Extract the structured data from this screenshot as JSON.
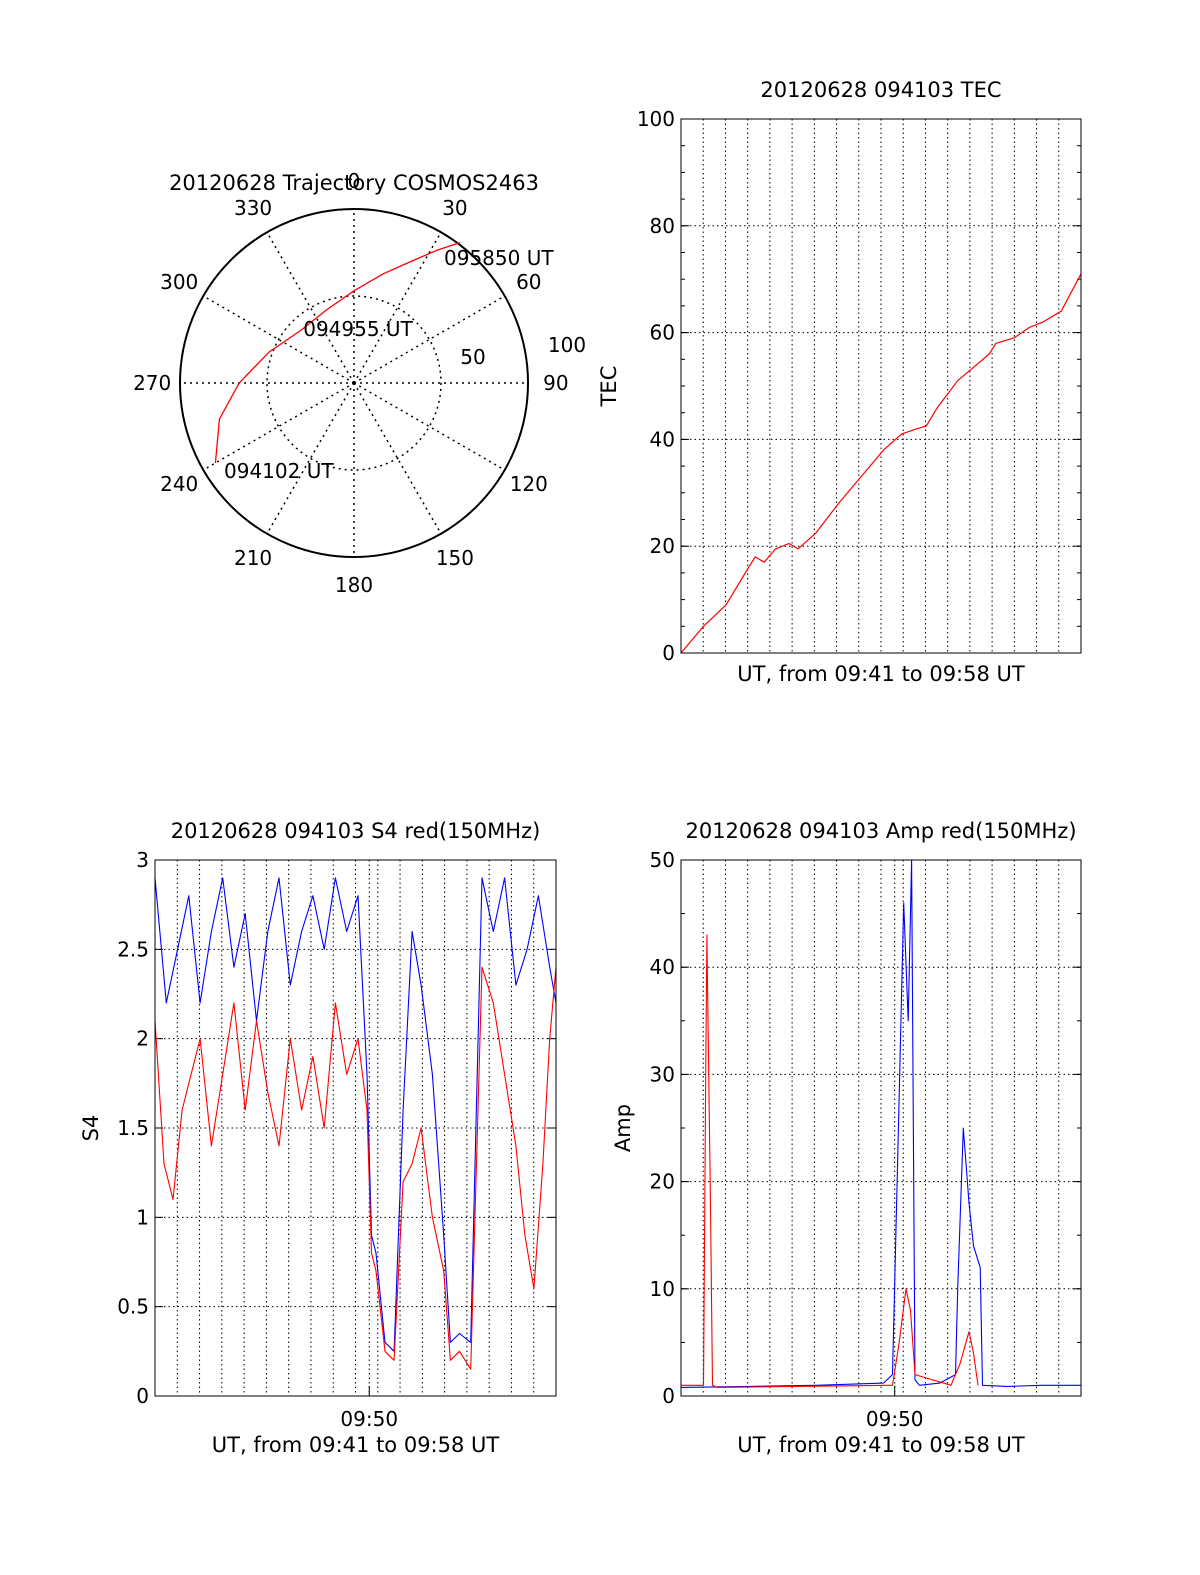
{
  "chart_data": [
    {
      "id": "trajectory",
      "type": "scatter",
      "subtype": "polar",
      "title": "20120628 Trajectory COSMOS2463",
      "azimuth_labels": [
        "0",
        "30",
        "60",
        "90",
        "120",
        "150",
        "180",
        "210",
        "240",
        "270",
        "300",
        "330"
      ],
      "radius_labels": [
        "50",
        "100"
      ],
      "ring_radii": [
        50,
        100
      ],
      "line_color": "#ff0000",
      "track": [
        {
          "az": 240,
          "r": 92
        },
        {
          "az": 255,
          "r": 80
        },
        {
          "az": 270,
          "r": 66
        },
        {
          "az": 290,
          "r": 52
        },
        {
          "az": 315,
          "r": 43
        },
        {
          "az": 340,
          "r": 45
        },
        {
          "az": 0,
          "r": 53
        },
        {
          "az": 15,
          "r": 65
        },
        {
          "az": 25,
          "r": 77
        },
        {
          "az": 32,
          "r": 90
        },
        {
          "az": 37,
          "r": 101
        }
      ],
      "annotations": [
        {
          "text": "095850 UT",
          "az": 36,
          "r": 103
        },
        {
          "text": "094955 UT",
          "az": 0,
          "r": 31
        },
        {
          "text": "094102 UT",
          "az": 236,
          "r": 86
        }
      ]
    },
    {
      "id": "tec",
      "type": "line",
      "title": "20120628 094103 TEC",
      "xlabel": "UT, from 09:41 to 09:58 UT",
      "ylabel": "TEC",
      "xlim": [
        0,
        17.78
      ],
      "ylim": [
        0,
        100
      ],
      "yticks": [
        "0",
        "20",
        "40",
        "60",
        "80",
        "100"
      ],
      "series": [
        {
          "color": "#ff0000",
          "x": [
            0,
            1.0,
            2.0,
            3.0,
            3.3,
            3.7,
            4.2,
            4.8,
            5.2,
            6.0,
            7.0,
            8.0,
            9.0,
            9.8,
            10.5,
            10.9,
            11.4,
            12.3,
            13.0,
            13.7,
            14.0,
            14.8,
            15.5,
            16.1,
            16.9,
            17.78
          ],
          "y": [
            0,
            5,
            9,
            16,
            18,
            17,
            19.5,
            20.5,
            19.5,
            22.5,
            28,
            33,
            38,
            41,
            42,
            42.5,
            46,
            51,
            53.5,
            56,
            58,
            59,
            61,
            62,
            64,
            71
          ]
        }
      ]
    },
    {
      "id": "s4",
      "type": "line",
      "title": "20120628 094103 S4 red(150MHz)",
      "xlabel": "UT, from 09:41 to 09:58 UT",
      "ylabel": "S4",
      "xlim": [
        0,
        17.78
      ],
      "ylim": [
        0,
        3
      ],
      "yticks": [
        "0",
        "0.5",
        "1",
        "1.5",
        "2",
        "2.5",
        "3"
      ],
      "xticks": [
        {
          "x": 9.5,
          "label": "09:50"
        }
      ],
      "series": [
        {
          "color": "#0000ff",
          "x": [
            0,
            0.5,
            1.0,
            1.5,
            2.0,
            2.5,
            3.0,
            3.5,
            4.0,
            4.5,
            5.0,
            5.5,
            6.0,
            6.5,
            7.0,
            7.5,
            8.0,
            8.5,
            9.0,
            9.4,
            9.6,
            9.8,
            10.2,
            10.6,
            11.0,
            11.4,
            11.8,
            12.3,
            12.8,
            13.1,
            13.5,
            14.0,
            14.5,
            15.0,
            15.5,
            16.0,
            16.5,
            17.0,
            17.5,
            17.78
          ],
          "y": [
            2.9,
            2.2,
            2.5,
            2.8,
            2.2,
            2.6,
            2.9,
            2.4,
            2.7,
            2.1,
            2.6,
            2.9,
            2.3,
            2.6,
            2.8,
            2.5,
            2.9,
            2.6,
            2.8,
            1.8,
            0.9,
            0.8,
            0.3,
            0.25,
            1.6,
            2.6,
            2.3,
            1.8,
            0.9,
            0.3,
            0.35,
            0.3,
            2.9,
            2.6,
            2.9,
            2.3,
            2.5,
            2.8,
            2.4,
            2.2
          ]
        },
        {
          "color": "#ff0000",
          "x": [
            0,
            0.4,
            0.8,
            1.2,
            1.6,
            2.0,
            2.5,
            3.0,
            3.5,
            4.0,
            4.5,
            5.0,
            5.5,
            6.0,
            6.5,
            7.0,
            7.5,
            8.0,
            8.5,
            9.0,
            9.4,
            9.6,
            9.8,
            10.2,
            10.6,
            11.0,
            11.4,
            11.8,
            12.3,
            12.8,
            13.1,
            13.5,
            14.0,
            14.5,
            15.0,
            15.5,
            16.0,
            16.4,
            16.8,
            17.2,
            17.5,
            17.78
          ],
          "y": [
            2.1,
            1.3,
            1.1,
            1.6,
            1.8,
            2.0,
            1.4,
            1.8,
            2.2,
            1.6,
            2.1,
            1.7,
            1.4,
            2.0,
            1.6,
            1.9,
            1.5,
            2.2,
            1.8,
            2.0,
            1.6,
            0.8,
            0.7,
            0.25,
            0.2,
            1.2,
            1.3,
            1.5,
            1.0,
            0.7,
            0.2,
            0.25,
            0.15,
            2.4,
            2.2,
            1.8,
            1.4,
            0.9,
            0.6,
            1.3,
            2.0,
            2.4
          ]
        }
      ]
    },
    {
      "id": "amp",
      "type": "line",
      "title": "20120628 094103 Amp red(150MHz)",
      "xlabel": "UT, from 09:41 to 09:58 UT",
      "ylabel": "Amp",
      "xlim": [
        0,
        17.78
      ],
      "ylim": [
        0,
        50
      ],
      "yticks": [
        "0",
        "10",
        "20",
        "30",
        "40",
        "50"
      ],
      "xticks": [
        {
          "x": 9.5,
          "label": "09:50"
        }
      ],
      "series": [
        {
          "color": "#0000ff",
          "x": [
            0,
            3.0,
            6.0,
            9.0,
            9.4,
            9.7,
            9.9,
            10.1,
            10.25,
            10.4,
            10.6,
            11.5,
            12.2,
            12.3,
            12.55,
            12.8,
            13.0,
            13.3,
            13.4,
            14.5,
            16.0,
            17.78
          ],
          "y": [
            0.8,
            0.9,
            1.0,
            1.2,
            2.0,
            28,
            46,
            35,
            50,
            1.5,
            1.0,
            1.2,
            2.0,
            10,
            25,
            18,
            14,
            12,
            1.0,
            0.9,
            1.0,
            1.0
          ]
        },
        {
          "color": "#ff0000",
          "x": [
            0,
            1.0,
            1.1,
            1.15,
            1.2,
            1.3,
            1.4,
            1.6,
            9.4,
            9.7,
            10.0,
            10.2,
            10.4,
            12.0,
            12.4,
            12.8,
            13.0,
            13.2
          ],
          "y": [
            1.0,
            1.0,
            30,
            43,
            35,
            20,
            1.0,
            0.8,
            1.0,
            5,
            10,
            8,
            2,
            1.0,
            3,
            6,
            4,
            1.0
          ]
        }
      ]
    }
  ]
}
